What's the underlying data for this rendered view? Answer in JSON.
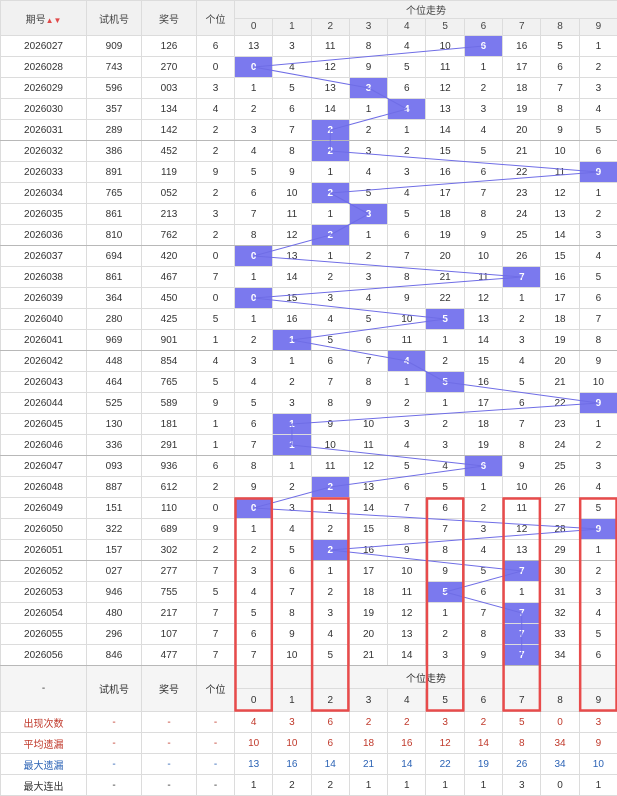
{
  "header": {
    "period": "期号",
    "sort_arrow": "▲▼",
    "trial": "试机号",
    "prize": "奖号",
    "unit": "个位",
    "trend": "个位走势",
    "digits": [
      "0",
      "1",
      "2",
      "3",
      "4",
      "5",
      "6",
      "7",
      "8",
      "9"
    ]
  },
  "rows": [
    {
      "p": "2026027",
      "t": "909",
      "a": "126",
      "u": "6",
      "c": [
        13,
        3,
        11,
        8,
        4,
        10,
        6,
        16,
        5,
        1
      ]
    },
    {
      "p": "2026028",
      "t": "743",
      "a": "270",
      "u": "0",
      "c": [
        0,
        4,
        12,
        9,
        5,
        11,
        1,
        17,
        6,
        2
      ]
    },
    {
      "p": "2026029",
      "t": "596",
      "a": "003",
      "u": "3",
      "c": [
        1,
        5,
        13,
        3,
        6,
        12,
        2,
        18,
        7,
        3
      ]
    },
    {
      "p": "2026030",
      "t": "357",
      "a": "134",
      "u": "4",
      "c": [
        2,
        6,
        14,
        1,
        4,
        13,
        3,
        19,
        8,
        4
      ]
    },
    {
      "p": "2026031",
      "t": "289",
      "a": "142",
      "u": "2",
      "c": [
        3,
        7,
        2,
        2,
        1,
        14,
        4,
        20,
        9,
        5
      ]
    },
    {
      "p": "2026032",
      "t": "386",
      "a": "452",
      "u": "2",
      "c": [
        4,
        8,
        2,
        3,
        2,
        15,
        5,
        21,
        10,
        6
      ]
    },
    {
      "p": "2026033",
      "t": "891",
      "a": "119",
      "u": "9",
      "c": [
        5,
        9,
        1,
        4,
        3,
        16,
        6,
        22,
        11,
        9
      ]
    },
    {
      "p": "2026034",
      "t": "765",
      "a": "052",
      "u": "2",
      "c": [
        6,
        10,
        2,
        5,
        4,
        17,
        7,
        23,
        12,
        1
      ]
    },
    {
      "p": "2026035",
      "t": "861",
      "a": "213",
      "u": "3",
      "c": [
        7,
        11,
        1,
        3,
        5,
        18,
        8,
        24,
        13,
        2
      ]
    },
    {
      "p": "2026036",
      "t": "810",
      "a": "762",
      "u": "2",
      "c": [
        8,
        12,
        2,
        1,
        6,
        19,
        9,
        25,
        14,
        3
      ]
    },
    {
      "p": "2026037",
      "t": "694",
      "a": "420",
      "u": "0",
      "c": [
        0,
        13,
        1,
        2,
        7,
        20,
        10,
        26,
        15,
        4
      ]
    },
    {
      "p": "2026038",
      "t": "861",
      "a": "467",
      "u": "7",
      "c": [
        1,
        14,
        2,
        3,
        8,
        21,
        11,
        7,
        16,
        5
      ]
    },
    {
      "p": "2026039",
      "t": "364",
      "a": "450",
      "u": "0",
      "c": [
        0,
        15,
        3,
        4,
        9,
        22,
        12,
        1,
        17,
        6
      ]
    },
    {
      "p": "2026040",
      "t": "280",
      "a": "425",
      "u": "5",
      "c": [
        1,
        16,
        4,
        5,
        10,
        5,
        13,
        2,
        18,
        7
      ]
    },
    {
      "p": "2026041",
      "t": "969",
      "a": "901",
      "u": "1",
      "c": [
        2,
        1,
        5,
        6,
        11,
        1,
        14,
        3,
        19,
        8
      ]
    },
    {
      "p": "2026042",
      "t": "448",
      "a": "854",
      "u": "4",
      "c": [
        3,
        1,
        6,
        7,
        4,
        2,
        15,
        4,
        20,
        9
      ]
    },
    {
      "p": "2026043",
      "t": "464",
      "a": "765",
      "u": "5",
      "c": [
        4,
        2,
        7,
        8,
        1,
        5,
        16,
        5,
        21,
        10
      ]
    },
    {
      "p": "2026044",
      "t": "525",
      "a": "589",
      "u": "9",
      "c": [
        5,
        3,
        8,
        9,
        2,
        1,
        17,
        6,
        22,
        9
      ]
    },
    {
      "p": "2026045",
      "t": "130",
      "a": "181",
      "u": "1",
      "c": [
        6,
        1,
        9,
        10,
        3,
        2,
        18,
        7,
        23,
        1
      ]
    },
    {
      "p": "2026046",
      "t": "336",
      "a": "291",
      "u": "1",
      "c": [
        7,
        1,
        10,
        11,
        4,
        3,
        19,
        8,
        24,
        2
      ]
    },
    {
      "p": "2026047",
      "t": "093",
      "a": "936",
      "u": "6",
      "c": [
        8,
        1,
        11,
        12,
        5,
        4,
        6,
        9,
        25,
        3
      ]
    },
    {
      "p": "2026048",
      "t": "887",
      "a": "612",
      "u": "2",
      "c": [
        9,
        2,
        2,
        13,
        6,
        5,
        1,
        10,
        26,
        4
      ]
    },
    {
      "p": "2026049",
      "t": "151",
      "a": "110",
      "u": "0",
      "c": [
        0,
        3,
        1,
        14,
        7,
        6,
        2,
        11,
        27,
        5
      ]
    },
    {
      "p": "2026050",
      "t": "322",
      "a": "689",
      "u": "9",
      "c": [
        1,
        4,
        2,
        15,
        8,
        7,
        3,
        12,
        28,
        9
      ]
    },
    {
      "p": "2026051",
      "t": "157",
      "a": "302",
      "u": "2",
      "c": [
        2,
        5,
        2,
        16,
        9,
        8,
        4,
        13,
        29,
        1
      ]
    },
    {
      "p": "2026052",
      "t": "027",
      "a": "277",
      "u": "7",
      "c": [
        3,
        6,
        1,
        17,
        10,
        9,
        5,
        7,
        30,
        2
      ]
    },
    {
      "p": "2026053",
      "t": "946",
      "a": "755",
      "u": "5",
      "c": [
        4,
        7,
        2,
        18,
        11,
        5,
        6,
        1,
        31,
        3
      ]
    },
    {
      "p": "2026054",
      "t": "480",
      "a": "217",
      "u": "7",
      "c": [
        5,
        8,
        3,
        19,
        12,
        1,
        7,
        7,
        32,
        4
      ]
    },
    {
      "p": "2026055",
      "t": "296",
      "a": "107",
      "u": "7",
      "c": [
        6,
        9,
        4,
        20,
        13,
        2,
        8,
        7,
        33,
        5
      ]
    },
    {
      "p": "2026056",
      "t": "846",
      "a": "477",
      "u": "7",
      "c": [
        7,
        10,
        5,
        21,
        14,
        3,
        9,
        7,
        34,
        6
      ]
    }
  ],
  "footer_header": {
    "period": "-",
    "trial": "试机号",
    "prize": "奖号",
    "unit": "个位",
    "trend": "个位走势"
  },
  "stats": [
    {
      "label": "出现次数",
      "vals": [
        4,
        3,
        6,
        2,
        2,
        3,
        2,
        5,
        0,
        3
      ]
    },
    {
      "label": "平均遗漏",
      "vals": [
        10,
        10,
        6,
        18,
        16,
        12,
        14,
        8,
        34,
        9
      ]
    },
    {
      "label": "最大遗漏",
      "vals": [
        13,
        16,
        14,
        21,
        14,
        22,
        19,
        26,
        34,
        10
      ]
    },
    {
      "label": "最大连出",
      "vals": [
        1,
        2,
        2,
        1,
        1,
        1,
        1,
        3,
        0,
        1
      ]
    }
  ],
  "dash": "-",
  "colors": {
    "hit": "#7b79ee",
    "line": "#6f6de6",
    "box": "#e84b4b",
    "header": "#f1f1f1"
  },
  "highlight_digits": [
    0,
    2,
    5,
    7,
    9
  ]
}
